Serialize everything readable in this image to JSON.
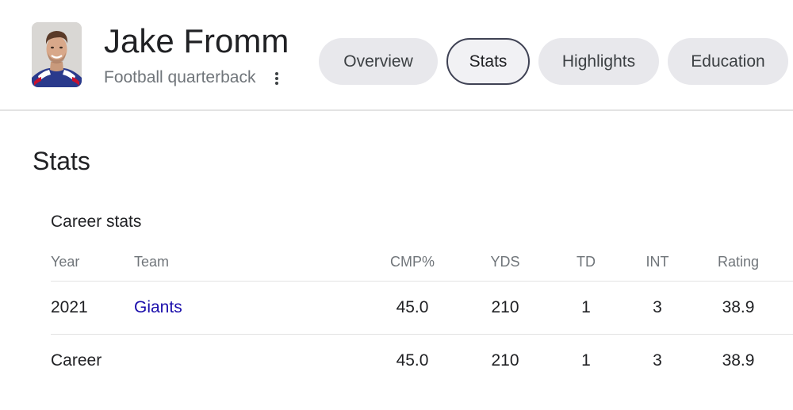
{
  "header": {
    "title": "Jake Fromm",
    "subtitle": "Football quarterback",
    "avatar_icon": "player-headshot",
    "more_icon": "more-vert-icon"
  },
  "tabs": [
    {
      "label": "Overview",
      "active": false
    },
    {
      "label": "Stats",
      "active": true
    },
    {
      "label": "Highlights",
      "active": false
    },
    {
      "label": "Education",
      "active": false
    }
  ],
  "stats": {
    "section_title": "Stats",
    "card_title": "Career stats",
    "columns": [
      "Year",
      "Team",
      "CMP%",
      "YDS",
      "TD",
      "INT",
      "Rating"
    ],
    "rows": [
      {
        "year": "2021",
        "team": "Giants",
        "cmp": "45.0",
        "yds": "210",
        "td": "1",
        "int": "3",
        "rating": "38.9"
      },
      {
        "year": "Career",
        "team": "",
        "cmp": "45.0",
        "yds": "210",
        "td": "1",
        "int": "3",
        "rating": "38.9"
      }
    ]
  },
  "colors": {
    "link": "#1a0dab",
    "tab_bg": "#e8e8ec",
    "active_tab_border": "#3f4254",
    "muted_text": "#70757a"
  }
}
